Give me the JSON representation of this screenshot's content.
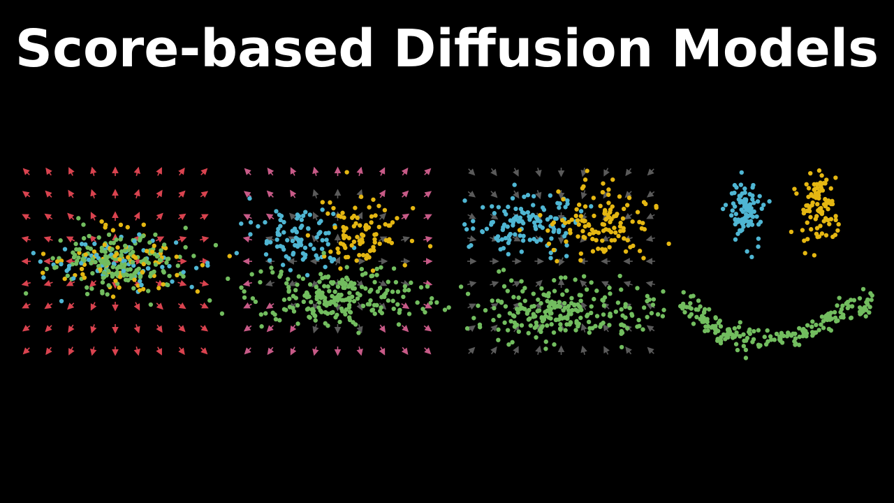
{
  "header": {
    "title": "Score-based Diffusion Models"
  }
}
